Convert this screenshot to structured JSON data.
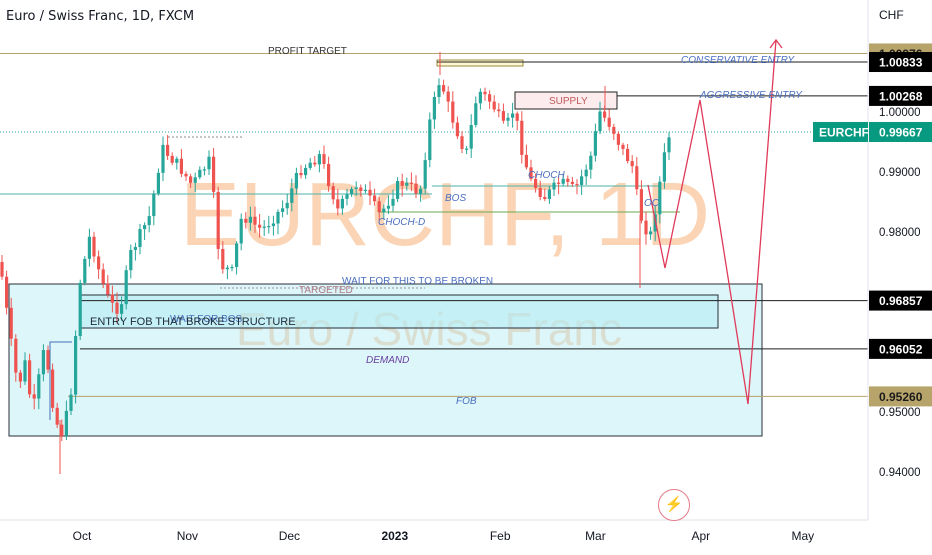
{
  "header": {
    "title": "Euro / Swiss Franc, 1D, FXCM",
    "currency": "CHF"
  },
  "chart_data": {
    "type": "candlestick",
    "symbol": "EURCHF",
    "watermark_main": "EURCHF, 1D",
    "watermark_sub": "Euro / Swiss Franc",
    "y_ticks": [
      "0.94000",
      "0.95000",
      "0.98000",
      "0.99000",
      "1.00000"
    ],
    "x_ticks": [
      {
        "label": "Oct",
        "date": "2022-10-01"
      },
      {
        "label": "Nov",
        "date": "2022-11-01"
      },
      {
        "label": "Dec",
        "date": "2022-12-01"
      },
      {
        "label": "2023",
        "date": "2023-01-01",
        "bold": true
      },
      {
        "label": "Feb",
        "date": "2023-02-01"
      },
      {
        "label": "Mar",
        "date": "2023-03-01"
      },
      {
        "label": "Apr",
        "date": "2023-04-01"
      },
      {
        "label": "May",
        "date": "2023-05-01"
      }
    ],
    "price_labels": [
      {
        "value": "1.00976",
        "price": 1.00976,
        "style": "gold"
      },
      {
        "value": "1.00833",
        "price": 1.00833,
        "style": "black"
      },
      {
        "value": "1.00268",
        "price": 1.00268,
        "style": "black"
      },
      {
        "value": "0.99667",
        "price": 0.99667,
        "style": "green",
        "tag": "EURCHF"
      },
      {
        "value": "0.96857",
        "price": 0.96857,
        "style": "black"
      },
      {
        "value": "0.96052",
        "price": 0.96052,
        "style": "black"
      },
      {
        "value": "0.95260",
        "price": 0.9526,
        "style": "gold"
      }
    ],
    "annotations": {
      "profit_target": "PROFIT TARGET",
      "conservative_entry": "CONSERVATIVE ENTRY",
      "aggressive_entry": "AGGRESSIVE ENTRY",
      "supply": "SUPPLY",
      "bos": "BOS",
      "choch": "CHOCH",
      "choch_d": "CHOCH-D",
      "wait_broken": "WAIT FOR THIS TO BE BROKEN",
      "targeted": "TARGETED",
      "wait_for_bos": "WAIT FOR BOS",
      "entry_fob": "ENTRY FOB THAT BROKE STRUCTURE",
      "demand": "DEMAND",
      "fob": "FOB",
      "oc": "OC"
    },
    "colors": {
      "up": "#26a69a",
      "down": "#ef5350",
      "zone_fill": "#b2ebf2",
      "zone_border": "#2a2e39",
      "projection": "#e03a5a",
      "gold": "#b7a46b",
      "green_tag": "#089981",
      "text_blue": "#4a6fbf"
    }
  }
}
